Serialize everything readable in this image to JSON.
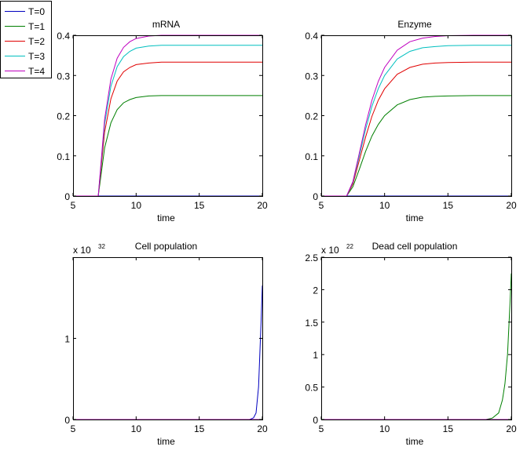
{
  "legend": [
    {
      "label": "T=0",
      "color": "#0000bf"
    },
    {
      "label": "T=1",
      "color": "#007f00"
    },
    {
      "label": "T=2",
      "color": "#e00000"
    },
    {
      "label": "T=3",
      "color": "#00bfbf"
    },
    {
      "label": "T=4",
      "color": "#bf00bf"
    }
  ],
  "chart_data": [
    {
      "type": "line",
      "title": "mRNA",
      "xlabel": "time",
      "ylabel": "",
      "xlim": [
        5,
        20
      ],
      "ylim": [
        0,
        0.4
      ],
      "xticks": [
        "5",
        "10",
        "15",
        "20"
      ],
      "xtick_values": [
        5,
        10,
        15,
        20
      ],
      "yticks": [
        "0",
        "0.1",
        "0.2",
        "0.3",
        "0.4"
      ],
      "ytick_values": [
        0,
        0.1,
        0.2,
        0.3,
        0.4
      ],
      "exponent": "",
      "x": [
        5,
        6,
        7,
        7.5,
        8,
        8.5,
        9,
        9.5,
        10,
        11,
        12,
        13,
        14,
        15,
        17,
        20
      ],
      "series": [
        {
          "name": "T=0",
          "values": [
            0,
            0,
            0,
            0,
            0,
            0,
            0,
            0,
            0,
            0,
            0,
            0,
            0,
            0,
            0,
            0
          ]
        },
        {
          "name": "T=1",
          "values": [
            0,
            0,
            0,
            0.12,
            0.182,
            0.215,
            0.232,
            0.24,
            0.245,
            0.249,
            0.25,
            0.25,
            0.25,
            0.25,
            0.25,
            0.25
          ]
        },
        {
          "name": "T=2",
          "values": [
            0,
            0,
            0,
            0.159,
            0.242,
            0.286,
            0.309,
            0.32,
            0.327,
            0.331,
            0.333,
            0.333,
            0.333,
            0.333,
            0.333,
            0.333
          ]
        },
        {
          "name": "T=3",
          "values": [
            0,
            0,
            0,
            0.179,
            0.273,
            0.322,
            0.347,
            0.36,
            0.368,
            0.373,
            0.375,
            0.375,
            0.375,
            0.375,
            0.375,
            0.375
          ]
        },
        {
          "name": "T=4",
          "values": [
            0,
            0,
            0,
            0.191,
            0.291,
            0.343,
            0.37,
            0.384,
            0.392,
            0.398,
            0.4,
            0.4,
            0.4,
            0.4,
            0.4,
            0.4
          ]
        }
      ]
    },
    {
      "type": "line",
      "title": "Enzyme",
      "xlabel": "time",
      "ylabel": "",
      "xlim": [
        5,
        20
      ],
      "ylim": [
        0,
        0.4
      ],
      "xticks": [
        "5",
        "10",
        "15",
        "20"
      ],
      "xtick_values": [
        5,
        10,
        15,
        20
      ],
      "yticks": [
        "0",
        "0.1",
        "0.2",
        "0.3",
        "0.4"
      ],
      "ytick_values": [
        0,
        0.1,
        0.2,
        0.3,
        0.4
      ],
      "exponent": "",
      "x": [
        5,
        6,
        7,
        7.5,
        8,
        8.5,
        9,
        9.5,
        10,
        11,
        12,
        13,
        14,
        15,
        17,
        20
      ],
      "series": [
        {
          "name": "T=0",
          "values": [
            0,
            0,
            0,
            0,
            0,
            0,
            0,
            0,
            0,
            0,
            0,
            0,
            0,
            0,
            0,
            0
          ]
        },
        {
          "name": "T=1",
          "values": [
            0,
            0,
            0,
            0.023,
            0.066,
            0.111,
            0.149,
            0.178,
            0.2,
            0.227,
            0.24,
            0.246,
            0.248,
            0.249,
            0.25,
            0.25
          ]
        },
        {
          "name": "T=2",
          "values": [
            0,
            0,
            0,
            0.03,
            0.088,
            0.147,
            0.198,
            0.238,
            0.267,
            0.303,
            0.32,
            0.328,
            0.331,
            0.332,
            0.333,
            0.333
          ]
        },
        {
          "name": "T=3",
          "values": [
            0,
            0,
            0,
            0.034,
            0.099,
            0.166,
            0.223,
            0.267,
            0.3,
            0.341,
            0.36,
            0.369,
            0.372,
            0.374,
            0.375,
            0.375
          ]
        },
        {
          "name": "T=4",
          "values": [
            0,
            0,
            0,
            0.036,
            0.106,
            0.177,
            0.238,
            0.285,
            0.32,
            0.363,
            0.384,
            0.393,
            0.397,
            0.399,
            0.4,
            0.4
          ]
        }
      ]
    },
    {
      "type": "line",
      "title": "Cell population",
      "xlabel": "time",
      "ylabel": "",
      "xlim": [
        5,
        20
      ],
      "ylim": [
        0,
        2
      ],
      "xticks": [
        "5",
        "10",
        "15",
        "20"
      ],
      "xtick_values": [
        5,
        10,
        15,
        20
      ],
      "yticks": [
        "0",
        "1"
      ],
      "ytick_values": [
        0,
        1
      ],
      "exponent": "x 10",
      "exponent_power": "32",
      "x": [
        5,
        7,
        13,
        18,
        18.5,
        19,
        19.3,
        19.5,
        19.7,
        19.8,
        19.9,
        20
      ],
      "series": [
        {
          "name": "T=0",
          "values": [
            0,
            0,
            0,
            0,
            0,
            0,
            0.02,
            0.08,
            0.4,
            0.8,
            1.2,
            1.65
          ]
        },
        {
          "name": "T=1",
          "values": [
            0,
            0,
            0,
            0,
            0,
            0,
            0,
            0,
            0,
            0,
            0,
            0
          ]
        },
        {
          "name": "T=2",
          "values": [
            0,
            0,
            0,
            0,
            0,
            0,
            0,
            0,
            0,
            0,
            0,
            0
          ]
        },
        {
          "name": "T=3",
          "values": [
            0,
            0,
            0,
            0,
            0,
            0,
            0,
            0,
            0,
            0,
            0,
            0
          ]
        },
        {
          "name": "T=4",
          "values": [
            0,
            0,
            0,
            0,
            0,
            0,
            0,
            0,
            0,
            0,
            0,
            0
          ]
        }
      ]
    },
    {
      "type": "line",
      "title": "Dead cell population",
      "xlabel": "time",
      "ylabel": "",
      "xlim": [
        5,
        20
      ],
      "ylim": [
        0,
        2.5
      ],
      "xticks": [
        "5",
        "10",
        "15",
        "20"
      ],
      "xtick_values": [
        5,
        10,
        15,
        20
      ],
      "yticks": [
        "0",
        "0.5",
        "1",
        "1.5",
        "2",
        "2.5"
      ],
      "ytick_values": [
        0,
        0.5,
        1,
        1.5,
        2,
        2.5
      ],
      "exponent": "x 10",
      "exponent_power": "22",
      "x": [
        5,
        7,
        13,
        18,
        18.5,
        19,
        19.3,
        19.5,
        19.7,
        19.8,
        19.9,
        20
      ],
      "series": [
        {
          "name": "T=0",
          "values": [
            0,
            0,
            0,
            0,
            0,
            0,
            0,
            0,
            0,
            0,
            0,
            0
          ]
        },
        {
          "name": "T=1",
          "values": [
            0,
            0,
            0,
            0,
            0.02,
            0.1,
            0.3,
            0.55,
            1.0,
            1.4,
            1.8,
            2.25
          ]
        },
        {
          "name": "T=2",
          "values": [
            0,
            0,
            0,
            0,
            0,
            0,
            0,
            0,
            0,
            0,
            0,
            0
          ]
        },
        {
          "name": "T=3",
          "values": [
            0,
            0,
            0,
            0,
            0,
            0,
            0,
            0,
            0,
            0,
            0,
            0
          ]
        },
        {
          "name": "T=4",
          "values": [
            0,
            0,
            0,
            0,
            0,
            0,
            0,
            0,
            0,
            0,
            0,
            0
          ]
        }
      ]
    }
  ]
}
